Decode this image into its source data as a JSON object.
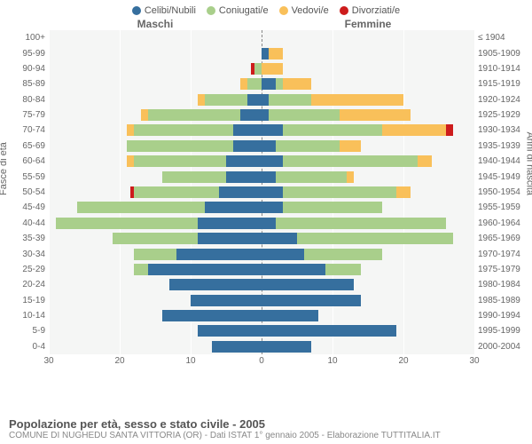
{
  "title": "Popolazione per età, sesso e stato civile - 2005",
  "subtitle": "COMUNE DI NUGHEDU SANTA VITTORIA (OR) - Dati ISTAT 1° gennaio 2005 - Elaborazione TUTTITALIA.IT",
  "legend": [
    {
      "label": "Celibi/Nubili",
      "color": "#366f9e"
    },
    {
      "label": "Coniugati/e",
      "color": "#a9cf8b"
    },
    {
      "label": "Vedovi/e",
      "color": "#f9c05a"
    },
    {
      "label": "Divorziati/e",
      "color": "#cd1c1c"
    }
  ],
  "header_left": "Maschi",
  "header_right": "Femmine",
  "axis_left_title": "Fasce di età",
  "axis_right_title": "Anni di nascita",
  "xmax": 30,
  "xticks": [
    30,
    20,
    10,
    0,
    10,
    20,
    30
  ],
  "age_groups": [
    "100+",
    "95-99",
    "90-94",
    "85-89",
    "80-84",
    "75-79",
    "70-74",
    "65-69",
    "60-64",
    "55-59",
    "50-54",
    "45-49",
    "40-44",
    "35-39",
    "30-34",
    "25-29",
    "20-24",
    "15-19",
    "10-14",
    "5-9",
    "0-4"
  ],
  "birth_years": [
    "≤ 1904",
    "1905-1909",
    "1910-1914",
    "1915-1919",
    "1920-1924",
    "1925-1929",
    "1930-1934",
    "1935-1939",
    "1940-1944",
    "1945-1949",
    "1950-1954",
    "1955-1959",
    "1960-1964",
    "1965-1969",
    "1970-1974",
    "1975-1979",
    "1980-1984",
    "1985-1989",
    "1990-1994",
    "1995-1999",
    "2000-2004"
  ],
  "data": [
    {
      "m": {
        "cel": 0,
        "con": 0,
        "ved": 0,
        "div": 0
      },
      "f": {
        "cel": 0,
        "con": 0,
        "ved": 0,
        "div": 0
      }
    },
    {
      "m": {
        "cel": 0,
        "con": 0,
        "ved": 0,
        "div": 0
      },
      "f": {
        "cel": 1,
        "con": 0,
        "ved": 2,
        "div": 0
      }
    },
    {
      "m": {
        "cel": 0,
        "con": 1,
        "ved": 0,
        "div": 0.5
      },
      "f": {
        "cel": 0,
        "con": 0,
        "ved": 3,
        "div": 0
      }
    },
    {
      "m": {
        "cel": 0,
        "con": 2,
        "ved": 1,
        "div": 0
      },
      "f": {
        "cel": 2,
        "con": 1,
        "ved": 4,
        "div": 0
      }
    },
    {
      "m": {
        "cel": 2,
        "con": 6,
        "ved": 1,
        "div": 0
      },
      "f": {
        "cel": 1,
        "con": 6,
        "ved": 13,
        "div": 0
      }
    },
    {
      "m": {
        "cel": 3,
        "con": 13,
        "ved": 1,
        "div": 0
      },
      "f": {
        "cel": 1,
        "con": 10,
        "ved": 10,
        "div": 0
      }
    },
    {
      "m": {
        "cel": 4,
        "con": 14,
        "ved": 1,
        "div": 0
      },
      "f": {
        "cel": 3,
        "con": 14,
        "ved": 9,
        "div": 1
      }
    },
    {
      "m": {
        "cel": 4,
        "con": 15,
        "ved": 0,
        "div": 0
      },
      "f": {
        "cel": 2,
        "con": 9,
        "ved": 3,
        "div": 0
      }
    },
    {
      "m": {
        "cel": 5,
        "con": 13,
        "ved": 1,
        "div": 0
      },
      "f": {
        "cel": 3,
        "con": 19,
        "ved": 2,
        "div": 0
      }
    },
    {
      "m": {
        "cel": 5,
        "con": 9,
        "ved": 0,
        "div": 0
      },
      "f": {
        "cel": 2,
        "con": 10,
        "ved": 1,
        "div": 0
      }
    },
    {
      "m": {
        "cel": 6,
        "con": 12,
        "ved": 0,
        "div": 0.5
      },
      "f": {
        "cel": 3,
        "con": 16,
        "ved": 2,
        "div": 0
      }
    },
    {
      "m": {
        "cel": 8,
        "con": 18,
        "ved": 0,
        "div": 0
      },
      "f": {
        "cel": 3,
        "con": 14,
        "ved": 0,
        "div": 0
      }
    },
    {
      "m": {
        "cel": 9,
        "con": 20,
        "ved": 0,
        "div": 0
      },
      "f": {
        "cel": 2,
        "con": 24,
        "ved": 0,
        "div": 0
      }
    },
    {
      "m": {
        "cel": 9,
        "con": 12,
        "ved": 0,
        "div": 0
      },
      "f": {
        "cel": 5,
        "con": 22,
        "ved": 0,
        "div": 0
      }
    },
    {
      "m": {
        "cel": 12,
        "con": 6,
        "ved": 0,
        "div": 0
      },
      "f": {
        "cel": 6,
        "con": 11,
        "ved": 0,
        "div": 0
      }
    },
    {
      "m": {
        "cel": 16,
        "con": 2,
        "ved": 0,
        "div": 0
      },
      "f": {
        "cel": 9,
        "con": 5,
        "ved": 0,
        "div": 0
      }
    },
    {
      "m": {
        "cel": 13,
        "con": 0,
        "ved": 0,
        "div": 0
      },
      "f": {
        "cel": 13,
        "con": 0,
        "ved": 0,
        "div": 0
      }
    },
    {
      "m": {
        "cel": 10,
        "con": 0,
        "ved": 0,
        "div": 0
      },
      "f": {
        "cel": 14,
        "con": 0,
        "ved": 0,
        "div": 0
      }
    },
    {
      "m": {
        "cel": 14,
        "con": 0,
        "ved": 0,
        "div": 0
      },
      "f": {
        "cel": 8,
        "con": 0,
        "ved": 0,
        "div": 0
      }
    },
    {
      "m": {
        "cel": 9,
        "con": 0,
        "ved": 0,
        "div": 0
      },
      "f": {
        "cel": 19,
        "con": 0,
        "ved": 0,
        "div": 0
      }
    },
    {
      "m": {
        "cel": 7,
        "con": 0,
        "ved": 0,
        "div": 0
      },
      "f": {
        "cel": 7,
        "con": 0,
        "ved": 0,
        "div": 0
      }
    }
  ],
  "colors": {
    "cel": "#366f9e",
    "con": "#a9cf8b",
    "ved": "#f9c05a",
    "div": "#cd1c1c",
    "bg": "#f5f6f5"
  }
}
